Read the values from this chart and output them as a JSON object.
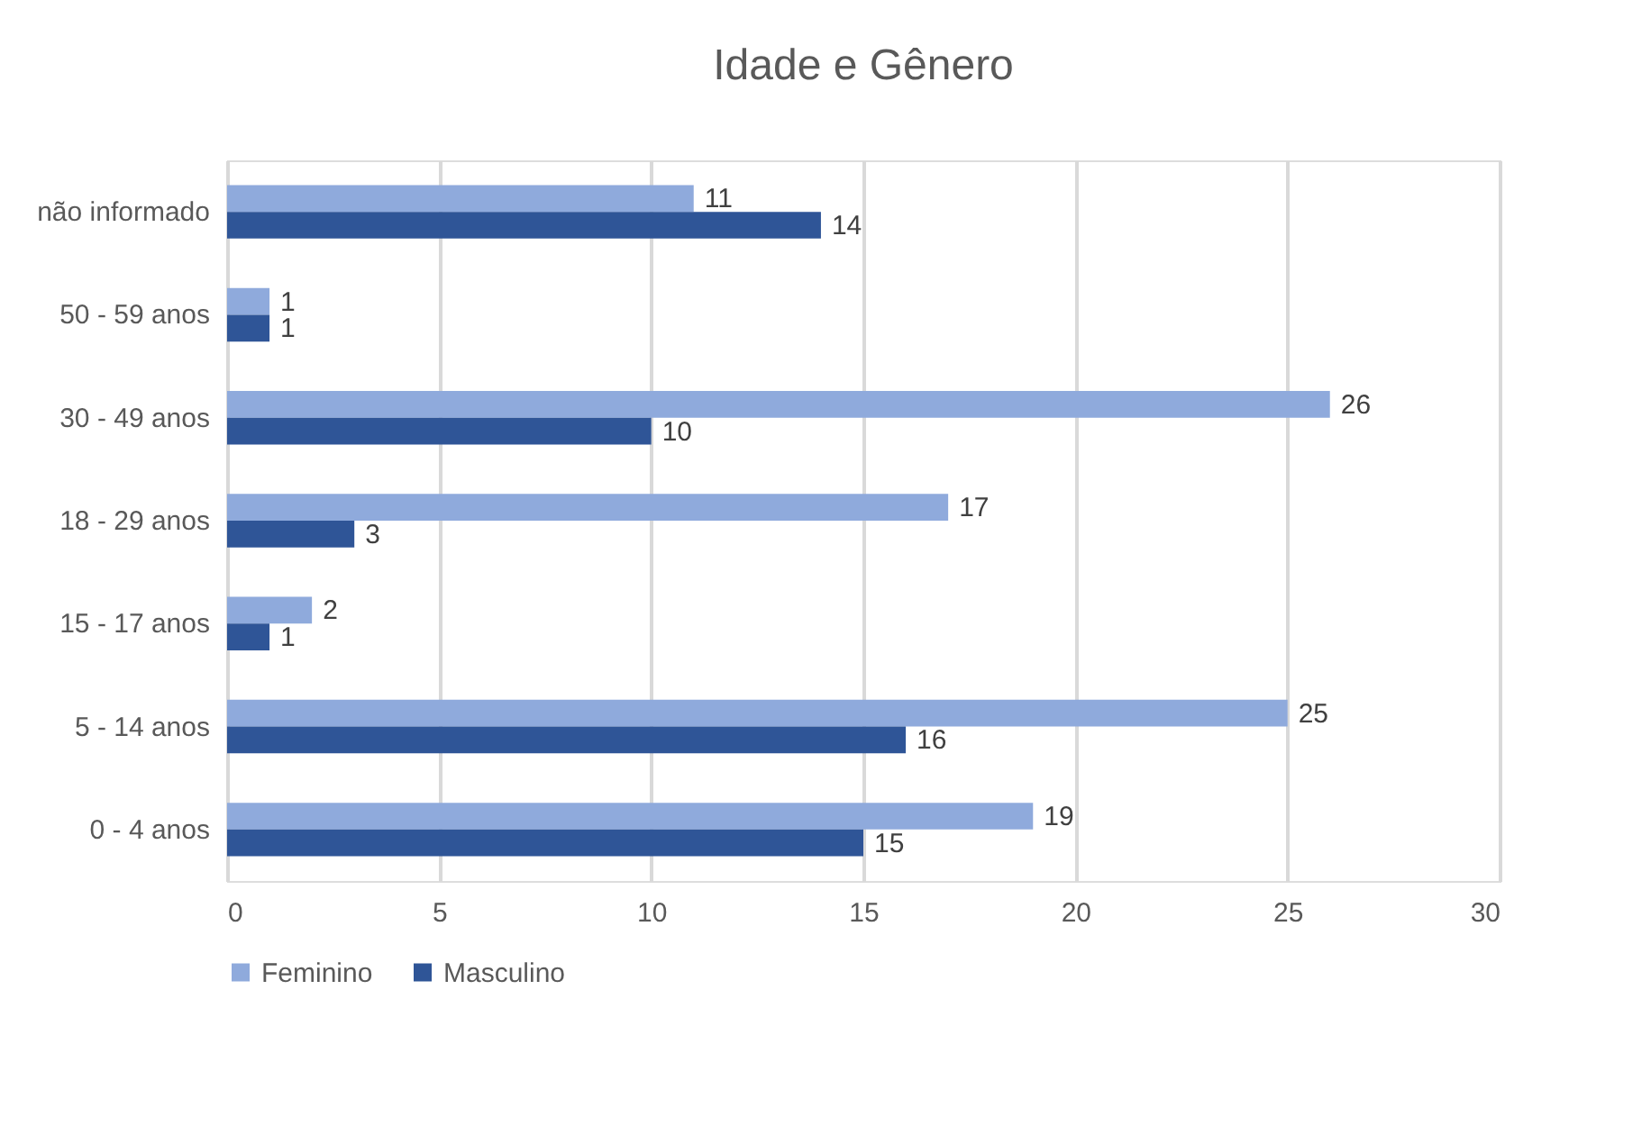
{
  "chart_data": {
    "type": "bar",
    "orientation": "horizontal",
    "title": "Idade e Gênero",
    "categories": [
      "não informado",
      "50 - 59 anos",
      "30 - 49 anos",
      "18 - 29 anos",
      "15 - 17 anos",
      "5 - 14 anos",
      "0 - 4 anos"
    ],
    "series": [
      {
        "name": "Feminino",
        "color": "#8faadc",
        "values": [
          11,
          1,
          26,
          17,
          2,
          25,
          19
        ]
      },
      {
        "name": "Masculino",
        "color": "#2f5597",
        "values": [
          14,
          1,
          10,
          3,
          1,
          16,
          15
        ]
      }
    ],
    "xlim": [
      0,
      30
    ],
    "xticks": [
      0,
      5,
      10,
      15,
      20,
      25,
      30
    ],
    "grid": "x",
    "legend": "bottom",
    "data_labels": true
  }
}
